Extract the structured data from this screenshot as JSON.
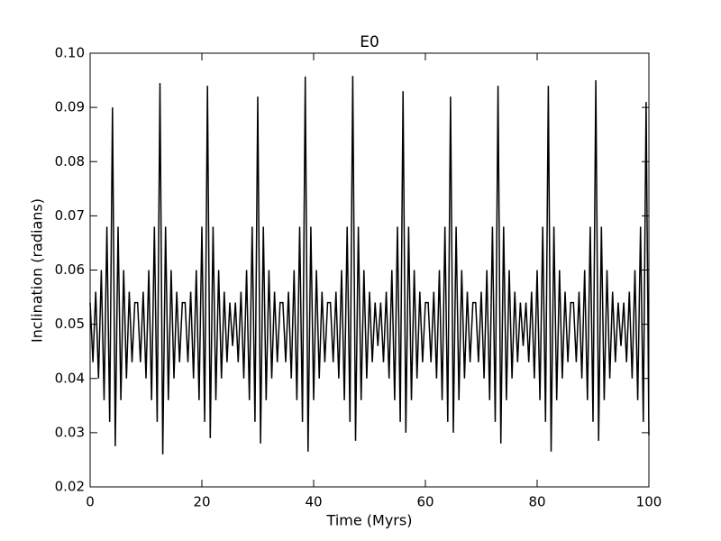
{
  "chart_data": {
    "type": "line",
    "title": "E0",
    "xlabel": "Time (Myrs)",
    "ylabel": "Inclination (radians)",
    "x": [
      0,
      0.5,
      1,
      1.5,
      2,
      2.5,
      3,
      3.5,
      4,
      4.5,
      5,
      5.5,
      6,
      6.5,
      7,
      7.5,
      8,
      8.5,
      9,
      9.5,
      10,
      10.5,
      11,
      11.5,
      12,
      12.5,
      13,
      13.5,
      14,
      14.5,
      15,
      15.5,
      16,
      16.5,
      17,
      17.5,
      18,
      18.5,
      19,
      19.5,
      20,
      20.5,
      21,
      21.5,
      22,
      22.5,
      23,
      23.5,
      24,
      24.5,
      25,
      25.5,
      26,
      26.5,
      27,
      27.5,
      28,
      28.5,
      29,
      29.5,
      30,
      30.5,
      31,
      31.5,
      32,
      32.5,
      33,
      33.5,
      34,
      34.5,
      35,
      35.5,
      36,
      36.5,
      37,
      37.5,
      38,
      38.5,
      39,
      39.5,
      40,
      40.5,
      41,
      41.5,
      42,
      42.5,
      43,
      43.5,
      44,
      44.5,
      45,
      45.5,
      46,
      46.5,
      47,
      47.5,
      48,
      48.5,
      49,
      49.5,
      50,
      50.5,
      51,
      51.5,
      52,
      52.5,
      53,
      53.5,
      54,
      54.5,
      55,
      55.5,
      56,
      56.5,
      57,
      57.5,
      58,
      58.5,
      59,
      59.5,
      60,
      60.5,
      61,
      61.5,
      62,
      62.5,
      63,
      63.5,
      64,
      64.5,
      65,
      65.5,
      66,
      66.5,
      67,
      67.5,
      68,
      68.5,
      69,
      69.5,
      70,
      70.5,
      71,
      71.5,
      72,
      72.5,
      73,
      73.5,
      74,
      74.5,
      75,
      75.5,
      76,
      76.5,
      77,
      77.5,
      78,
      78.5,
      79,
      79.5,
      80,
      80.5,
      81,
      81.5,
      82,
      82.5,
      83,
      83.5,
      84,
      84.5,
      85,
      85.5,
      86,
      86.5,
      87,
      87.5,
      88,
      88.5,
      89,
      89.5,
      90,
      90.5,
      91,
      91.5,
      92,
      92.5,
      93,
      93.5,
      94,
      94.5,
      95,
      95.5,
      96,
      96.5,
      97,
      97.5,
      98,
      98.5,
      99,
      99.5,
      100
    ],
    "series": [
      {
        "color": "#000000",
        "values": [
          0.054,
          0.043,
          0.056,
          0.04,
          0.06,
          0.036,
          0.068,
          0.032,
          0.09,
          0.0275,
          0.068,
          0.036,
          0.06,
          0.04,
          0.056,
          0.043,
          0.054,
          0.054,
          0.043,
          0.056,
          0.04,
          0.06,
          0.036,
          0.068,
          0.032,
          0.0945,
          0.026,
          0.068,
          0.036,
          0.06,
          0.04,
          0.056,
          0.043,
          0.054,
          0.054,
          0.043,
          0.056,
          0.04,
          0.06,
          0.036,
          0.068,
          0.032,
          0.094,
          0.029,
          0.068,
          0.036,
          0.06,
          0.04,
          0.056,
          0.043,
          0.054,
          0.046,
          0.054,
          0.043,
          0.056,
          0.04,
          0.06,
          0.036,
          0.068,
          0.032,
          0.092,
          0.028,
          0.068,
          0.036,
          0.06,
          0.04,
          0.056,
          0.043,
          0.054,
          0.054,
          0.043,
          0.056,
          0.04,
          0.06,
          0.036,
          0.068,
          0.032,
          0.0957,
          0.0265,
          0.068,
          0.036,
          0.06,
          0.04,
          0.056,
          0.043,
          0.054,
          0.054,
          0.043,
          0.056,
          0.04,
          0.06,
          0.036,
          0.068,
          0.032,
          0.0958,
          0.0285,
          0.068,
          0.036,
          0.06,
          0.04,
          0.056,
          0.043,
          0.054,
          0.046,
          0.054,
          0.043,
          0.056,
          0.04,
          0.06,
          0.036,
          0.068,
          0.032,
          0.093,
          0.03,
          0.068,
          0.036,
          0.06,
          0.04,
          0.056,
          0.043,
          0.054,
          0.054,
          0.043,
          0.056,
          0.04,
          0.06,
          0.036,
          0.068,
          0.032,
          0.092,
          0.03,
          0.068,
          0.036,
          0.06,
          0.04,
          0.056,
          0.043,
          0.054,
          0.054,
          0.043,
          0.056,
          0.04,
          0.06,
          0.036,
          0.068,
          0.032,
          0.094,
          0.028,
          0.068,
          0.036,
          0.06,
          0.04,
          0.056,
          0.043,
          0.054,
          0.046,
          0.054,
          0.043,
          0.056,
          0.04,
          0.06,
          0.036,
          0.068,
          0.032,
          0.094,
          0.0265,
          0.068,
          0.036,
          0.06,
          0.04,
          0.056,
          0.043,
          0.054,
          0.054,
          0.043,
          0.056,
          0.04,
          0.06,
          0.036,
          0.068,
          0.032,
          0.095,
          0.0285,
          0.068,
          0.036,
          0.06,
          0.04,
          0.056,
          0.043,
          0.054,
          0.046,
          0.054,
          0.043,
          0.056,
          0.04,
          0.06,
          0.036,
          0.068,
          0.032,
          0.091,
          0.0295
        ]
      }
    ],
    "xlim": [
      0,
      100
    ],
    "xticks": [
      0,
      20,
      40,
      60,
      80,
      100
    ],
    "ylim": [
      0.02,
      0.1
    ],
    "yticks": [
      0.02,
      0.03,
      0.04,
      0.05,
      0.06,
      0.07,
      0.08,
      0.09,
      {
        "value": 0.1,
        "label": "0.10"
      }
    ]
  }
}
